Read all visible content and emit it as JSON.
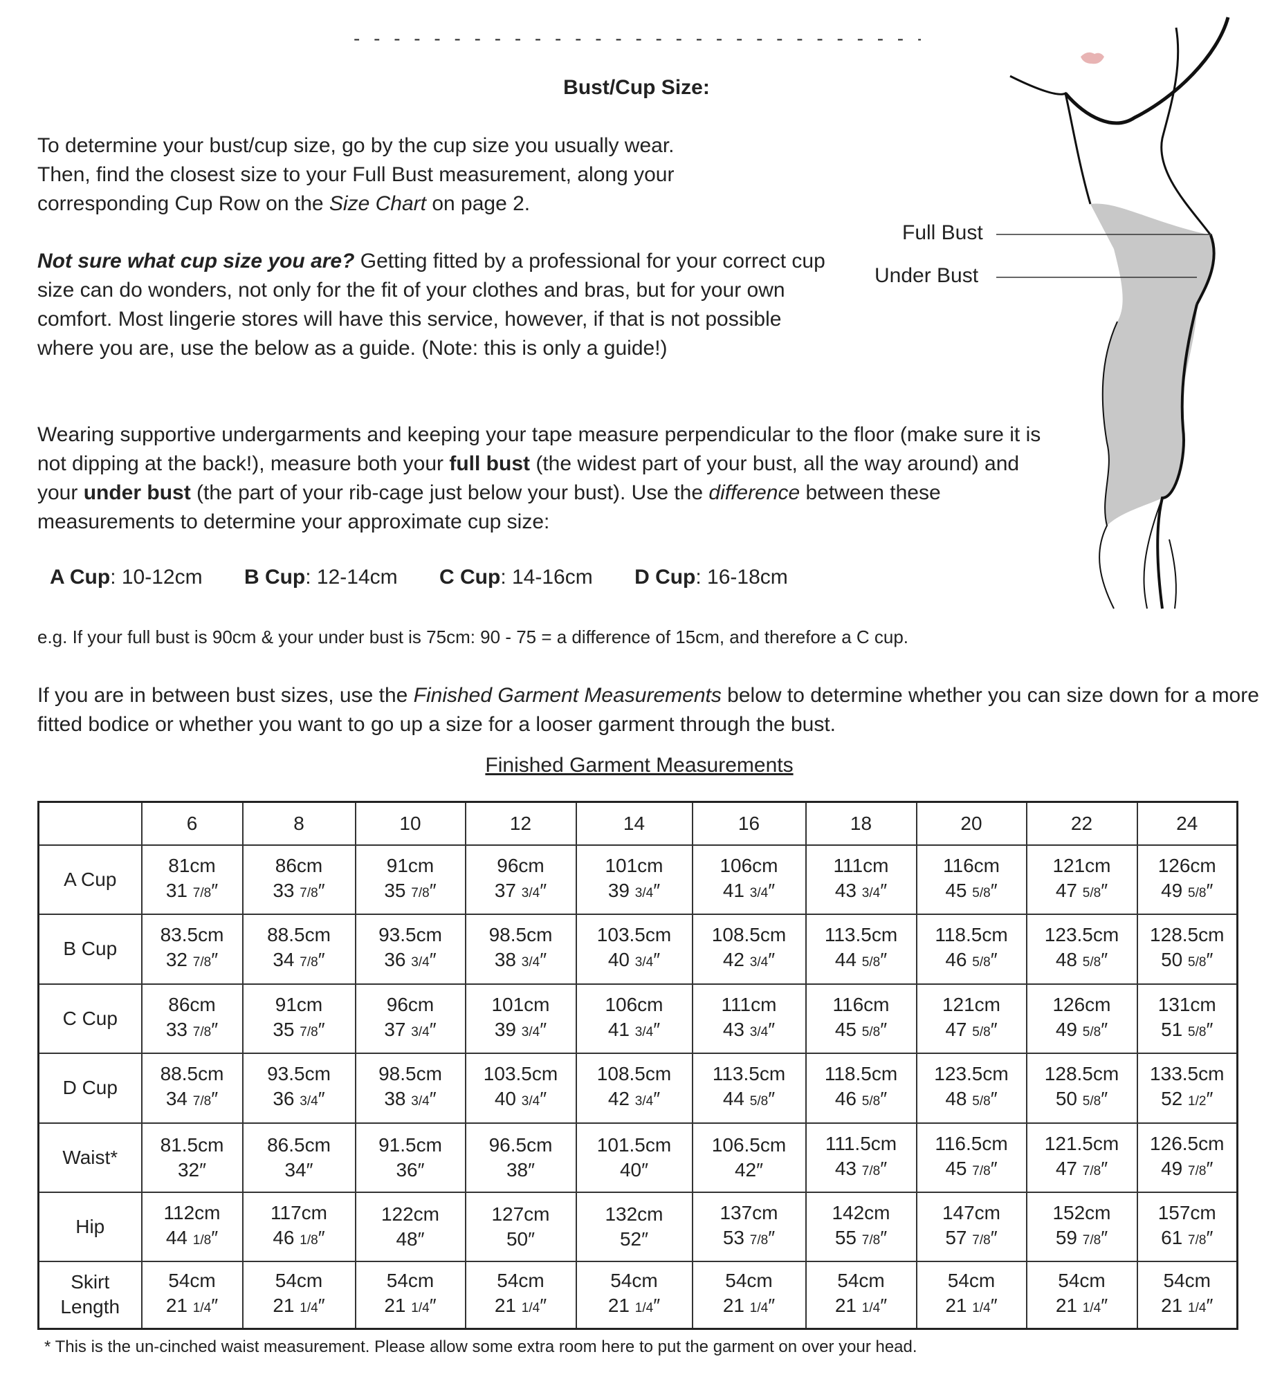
{
  "divider": "- - - - - - - - - - - - - - - - - - - - - - - - - - - - - - - - - - - - - - -",
  "section_title": "Bust/Cup Size:",
  "para1": [
    "To determine your bust/cup size, go by the cup size you usually wear.",
    "Then, find the closest size to your Full Bust measurement, along your",
    "corresponding Cup Row on the ",
    "Size Chart",
    " on page 2."
  ],
  "para2": {
    "lead": "Not sure what cup size you are?",
    "rest": " Getting fitted by a professional for your correct cup size can do wonders, not only for the fit of your clothes and bras, but for your own comfort. Most lingerie stores will have this service, however, if that is not possible where you are, use the below as a guide. (Note: this is only a guide!)"
  },
  "para3": {
    "a": "Wearing supportive undergarments and keeping your tape measure perpendicular to the floor (make sure it is not dipping at the back!), measure both your ",
    "b": "full bust",
    "c": " (the widest part of your bust, all the way around) and your ",
    "d": "under bust",
    "e": " (the part of your rib-cage just below your bust). Use the ",
    "f": "difference",
    "g": " between these measurements to determine your approximate cup size:"
  },
  "cups": [
    {
      "name": "A Cup",
      "range": ": 10-12cm"
    },
    {
      "name": "B Cup",
      "range": ": 12-14cm"
    },
    {
      "name": "C Cup",
      "range": ": 14-16cm"
    },
    {
      "name": "D Cup",
      "range": ": 16-18cm"
    }
  ],
  "example": "e.g. If your full bust is 90cm & your under bust is 75cm: 90 - 75 = a difference of 15cm, and therefore a C cup.",
  "para4": {
    "a": "If you are in between bust sizes, use the ",
    "b": "Finished Garment Measurements",
    "c": " below to determine whether you can size down for a more fitted bodice or whether you want to go up a size for a looser garment through the bust."
  },
  "figure": {
    "full_bust_label": "Full Bust",
    "under_bust_label": "Under Bust"
  },
  "table": {
    "title": "Finished Garment Measurements",
    "sizes": [
      "6",
      "8",
      "10",
      "12",
      "14",
      "16",
      "18",
      "20",
      "22",
      "24"
    ],
    "rows": [
      {
        "label": "A Cup",
        "cells": [
          [
            "81cm",
            "31",
            "7/8"
          ],
          [
            "86cm",
            "33",
            "7/8"
          ],
          [
            "91cm",
            "35",
            "7/8"
          ],
          [
            "96cm",
            "37",
            "3/4"
          ],
          [
            "101cm",
            "39",
            "3/4"
          ],
          [
            "106cm",
            "41",
            "3/4"
          ],
          [
            "111cm",
            "43",
            "3/4"
          ],
          [
            "116cm",
            "45",
            "5/8"
          ],
          [
            "121cm",
            "47",
            "5/8"
          ],
          [
            "126cm",
            "49",
            "5/8"
          ]
        ]
      },
      {
        "label": "B Cup",
        "cells": [
          [
            "83.5cm",
            "32",
            "7/8"
          ],
          [
            "88.5cm",
            "34",
            "7/8"
          ],
          [
            "93.5cm",
            "36",
            "3/4"
          ],
          [
            "98.5cm",
            "38",
            "3/4"
          ],
          [
            "103.5cm",
            "40",
            "3/4"
          ],
          [
            "108.5cm",
            "42",
            "3/4"
          ],
          [
            "113.5cm",
            "44",
            "5/8"
          ],
          [
            "118.5cm",
            "46",
            "5/8"
          ],
          [
            "123.5cm",
            "48",
            "5/8"
          ],
          [
            "128.5cm",
            "50",
            "5/8"
          ]
        ]
      },
      {
        "label": "C Cup",
        "cells": [
          [
            "86cm",
            "33",
            "7/8"
          ],
          [
            "91cm",
            "35",
            "7/8"
          ],
          [
            "96cm",
            "37",
            "3/4"
          ],
          [
            "101cm",
            "39",
            "3/4"
          ],
          [
            "106cm",
            "41",
            "3/4"
          ],
          [
            "111cm",
            "43",
            "3/4"
          ],
          [
            "116cm",
            "45",
            "5/8"
          ],
          [
            "121cm",
            "47",
            "5/8"
          ],
          [
            "126cm",
            "49",
            "5/8"
          ],
          [
            "131cm",
            "51",
            "5/8"
          ]
        ]
      },
      {
        "label": "D Cup",
        "cells": [
          [
            "88.5cm",
            "34",
            "7/8"
          ],
          [
            "93.5cm",
            "36",
            "3/4"
          ],
          [
            "98.5cm",
            "38",
            "3/4"
          ],
          [
            "103.5cm",
            "40",
            "3/4"
          ],
          [
            "108.5cm",
            "42",
            "3/4"
          ],
          [
            "113.5cm",
            "44",
            "5/8"
          ],
          [
            "118.5cm",
            "46",
            "5/8"
          ],
          [
            "123.5cm",
            "48",
            "5/8"
          ],
          [
            "128.5cm",
            "50",
            "5/8"
          ],
          [
            "133.5cm",
            "52",
            "1/2"
          ]
        ]
      },
      {
        "label": "Waist*",
        "cells": [
          [
            "81.5cm",
            "32",
            ""
          ],
          [
            "86.5cm",
            "34",
            ""
          ],
          [
            "91.5cm",
            "36",
            ""
          ],
          [
            "96.5cm",
            "38",
            ""
          ],
          [
            "101.5cm",
            "40",
            ""
          ],
          [
            "106.5cm",
            "42",
            ""
          ],
          [
            "111.5cm",
            "43",
            "7/8"
          ],
          [
            "116.5cm",
            "45",
            "7/8"
          ],
          [
            "121.5cm",
            "47",
            "7/8"
          ],
          [
            "126.5cm",
            "49",
            "7/8"
          ]
        ]
      },
      {
        "label": "Hip",
        "cells": [
          [
            "112cm",
            "44",
            "1/8"
          ],
          [
            "117cm",
            "46",
            "1/8"
          ],
          [
            "122cm",
            "48",
            ""
          ],
          [
            "127cm",
            "50",
            ""
          ],
          [
            "132cm",
            "52",
            ""
          ],
          [
            "137cm",
            "53",
            "7/8"
          ],
          [
            "142cm",
            "55",
            "7/8"
          ],
          [
            "147cm",
            "57",
            "7/8"
          ],
          [
            "152cm",
            "59",
            "7/8"
          ],
          [
            "157cm",
            "61",
            "7/8"
          ]
        ]
      },
      {
        "label": "Skirt Length",
        "cells": [
          [
            "54cm",
            "21",
            "1/4"
          ],
          [
            "54cm",
            "21",
            "1/4"
          ],
          [
            "54cm",
            "21",
            "1/4"
          ],
          [
            "54cm",
            "21",
            "1/4"
          ],
          [
            "54cm",
            "21",
            "1/4"
          ],
          [
            "54cm",
            "21",
            "1/4"
          ],
          [
            "54cm",
            "21",
            "1/4"
          ],
          [
            "54cm",
            "21",
            "1/4"
          ],
          [
            "54cm",
            "21",
            "1/4"
          ],
          [
            "54cm",
            "21",
            "1/4"
          ]
        ]
      }
    ],
    "inch_mark": "″"
  },
  "footnote": "* This is the un-cinched waist measurement. Please allow some extra room here to put the garment on over your head.",
  "colors": {
    "text": "#222222",
    "figure_fill": "#c8c8c8",
    "lips": "#e8b4b4"
  }
}
